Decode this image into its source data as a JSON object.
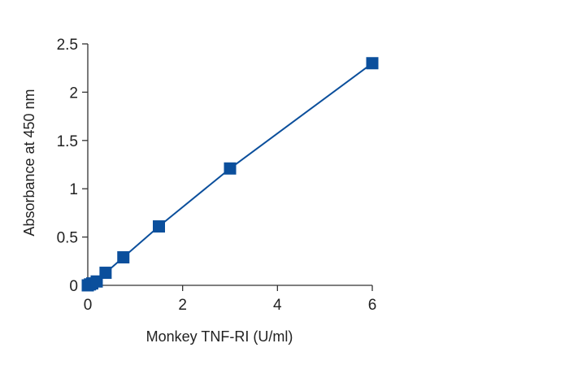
{
  "chart_data": {
    "type": "line",
    "title": "",
    "xlabel": "Monkey TNF-RI (U/ml)",
    "ylabel": "Absorbance at 450 nm",
    "xlim": [
      0,
      6
    ],
    "ylim": [
      0,
      2.5
    ],
    "x_ticks": [
      "0",
      "2",
      "4",
      "6"
    ],
    "y_ticks": [
      "0",
      "0.5",
      "1",
      "1.5",
      "2",
      "2.5"
    ],
    "grid": false,
    "legend": "none",
    "series": [
      {
        "x": [
          0,
          0.047,
          0.094,
          0.188,
          0.375,
          0.75,
          1.5,
          3,
          6
        ],
        "y": [
          0.0,
          0.01,
          0.02,
          0.04,
          0.13,
          0.29,
          0.61,
          1.21,
          2.3
        ],
        "color": "#0b4f9c",
        "marker": "square"
      }
    ]
  }
}
